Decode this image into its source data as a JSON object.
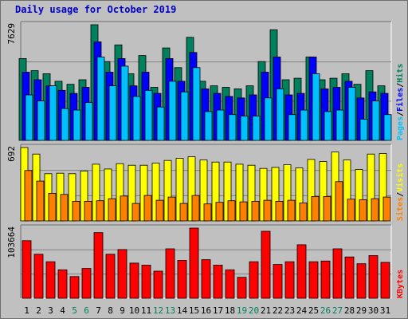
{
  "title": "Daily usage for October 2019",
  "colors": {
    "background": "#c0c0c0",
    "plot_bg": "#c0c0c0",
    "hits": "#00805c",
    "files": "#0000ff",
    "pages": "#00c0ff",
    "visits": "#ffff00",
    "sites": "#ff8000",
    "kbytes": "#ff0000",
    "title": "#0000c8",
    "day_weekday": "#000000",
    "day_weekend": "#00805c"
  },
  "chart_data": [
    {
      "type": "bar",
      "title": "Daily usage for October 2019",
      "categories": [
        "1",
        "2",
        "3",
        "4",
        "5",
        "6",
        "7",
        "8",
        "9",
        "10",
        "11",
        "12",
        "13",
        "14",
        "15",
        "16",
        "17",
        "18",
        "19",
        "20",
        "21",
        "22",
        "23",
        "24",
        "25",
        "26",
        "27",
        "28",
        "29",
        "30",
        "31"
      ],
      "weekend_days": [
        "5",
        "6",
        "12",
        "13",
        "19",
        "20",
        "26",
        "27"
      ],
      "ylim": [
        0,
        7629
      ],
      "y_max_label": "7629",
      "legend": [
        "Pages",
        "Files",
        "Hits"
      ],
      "legend_placement": "right-vertical",
      "series": [
        {
          "name": "Hits",
          "color": "#00805c",
          "values": [
            5400,
            4600,
            4400,
            3900,
            3700,
            4000,
            7629,
            5200,
            6300,
            4400,
            5600,
            3500,
            6100,
            4800,
            6800,
            3900,
            3600,
            3500,
            3400,
            3600,
            5200,
            7300,
            4000,
            4100,
            5500,
            4000,
            4100,
            4400,
            3700,
            4600,
            3600
          ]
        },
        {
          "name": "Files",
          "color": "#0000ff",
          "values": [
            4500,
            4000,
            3600,
            3300,
            3100,
            3500,
            6500,
            4500,
            5400,
            3600,
            4500,
            3100,
            5400,
            3900,
            5800,
            3400,
            3100,
            2900,
            2800,
            3000,
            4500,
            5500,
            3000,
            3100,
            5500,
            3400,
            3500,
            3900,
            2800,
            3200,
            3100
          ]
        },
        {
          "name": "Pages",
          "color": "#00c0ff",
          "values": [
            3000,
            2600,
            3600,
            2100,
            2000,
            2500,
            5500,
            3600,
            4900,
            2900,
            3300,
            2200,
            3900,
            3200,
            4800,
            1900,
            2000,
            1700,
            1600,
            1600,
            2800,
            3400,
            1700,
            2000,
            4400,
            1900,
            2000,
            3500,
            1400,
            2600,
            1700
          ]
        }
      ]
    },
    {
      "type": "bar",
      "categories": [
        "1",
        "2",
        "3",
        "4",
        "5",
        "6",
        "7",
        "8",
        "9",
        "10",
        "11",
        "12",
        "13",
        "14",
        "15",
        "16",
        "17",
        "18",
        "19",
        "20",
        "21",
        "22",
        "23",
        "24",
        "25",
        "26",
        "27",
        "28",
        "29",
        "30",
        "31"
      ],
      "ylim": [
        0,
        692
      ],
      "y_max_label": "692",
      "legend": [
        "Sites",
        "Visits"
      ],
      "legend_placement": "right-vertical",
      "series": [
        {
          "name": "Visits",
          "color": "#ffff00",
          "values": [
            692,
            630,
            445,
            450,
            445,
            470,
            535,
            490,
            540,
            525,
            525,
            545,
            570,
            590,
            605,
            575,
            555,
            555,
            535,
            525,
            495,
            505,
            530,
            500,
            580,
            560,
            650,
            575,
            485,
            630,
            635
          ]
        },
        {
          "name": "Sites",
          "color": "#ff8000",
          "values": [
            475,
            375,
            260,
            250,
            185,
            185,
            190,
            210,
            235,
            165,
            240,
            195,
            225,
            165,
            240,
            160,
            175,
            190,
            180,
            185,
            195,
            185,
            195,
            170,
            230,
            230,
            370,
            205,
            200,
            210,
            225
          ]
        }
      ]
    },
    {
      "type": "bar",
      "categories": [
        "1",
        "2",
        "3",
        "4",
        "5",
        "6",
        "7",
        "8",
        "9",
        "10",
        "11",
        "12",
        "13",
        "14",
        "15",
        "16",
        "17",
        "18",
        "19",
        "20",
        "21",
        "22",
        "23",
        "24",
        "25",
        "26",
        "27",
        "28",
        "29",
        "30",
        "31"
      ],
      "ylim": [
        0,
        103664
      ],
      "y_max_label": "103664",
      "legend": [
        "KBytes"
      ],
      "legend_placement": "right-vertical",
      "series": [
        {
          "name": "KBytes",
          "color": "#ff0000",
          "values": [
            85000,
            65000,
            54000,
            42000,
            32000,
            44000,
            97000,
            65000,
            72000,
            52000,
            49000,
            40000,
            73000,
            56000,
            103664,
            57000,
            49000,
            42000,
            31000,
            54000,
            99000,
            50000,
            54000,
            79000,
            54000,
            55000,
            73000,
            61000,
            51000,
            63000,
            53000
          ]
        }
      ]
    }
  ]
}
